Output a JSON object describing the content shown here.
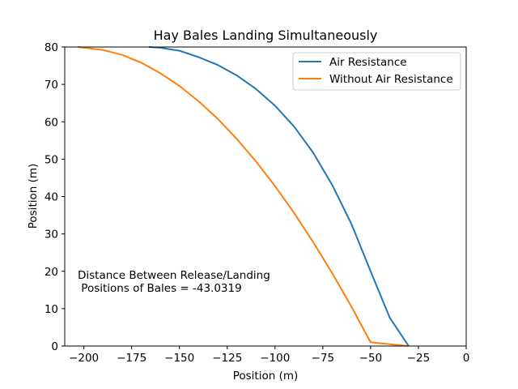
{
  "chart_data": {
    "type": "line",
    "title": "Hay Bales Landing Simultaneously",
    "xlabel": "Position (m)",
    "ylabel": "Position (m)",
    "xlim": [
      -210,
      0
    ],
    "ylim": [
      0,
      80
    ],
    "xticks": [
      -200,
      -175,
      -150,
      -125,
      -100,
      -75,
      -50,
      -25,
      0
    ],
    "xtick_labels": [
      "−200",
      "−175",
      "−150",
      "−125",
      "−100",
      "−75",
      "−50",
      "−25",
      "0"
    ],
    "yticks": [
      0,
      10,
      20,
      30,
      40,
      50,
      60,
      70,
      80
    ],
    "ytick_labels": [
      "0",
      "10",
      "20",
      "30",
      "40",
      "50",
      "60",
      "70",
      "80"
    ],
    "grid": false,
    "legend_position": "top-right",
    "annotation": {
      "line1": "Distance Between Release/Landing",
      "line2": " Positions of Bales = -43.0319"
    },
    "series": [
      {
        "name": "Air Resistance",
        "color": "#1f77b4",
        "points": [
          [
            -166,
            80
          ],
          [
            -160,
            79.8
          ],
          [
            -150,
            79
          ],
          [
            -140,
            77.3
          ],
          [
            -130,
            75.2
          ],
          [
            -120,
            72.4
          ],
          [
            -110,
            68.8
          ],
          [
            -100,
            64.3
          ],
          [
            -90,
            58.7
          ],
          [
            -80,
            51.7
          ],
          [
            -70,
            43.0
          ],
          [
            -60,
            32.6
          ],
          [
            -50,
            20.0
          ],
          [
            -40,
            7.6
          ],
          [
            -30.1,
            0
          ]
        ]
      },
      {
        "name": "Without Air Resistance",
        "color": "#ff7f0e",
        "points": [
          [
            -203,
            80
          ],
          [
            -190,
            79.2
          ],
          [
            -180,
            77.9
          ],
          [
            -170,
            75.8
          ],
          [
            -160,
            73.0
          ],
          [
            -150,
            69.6
          ],
          [
            -140,
            65.5
          ],
          [
            -130,
            60.8
          ],
          [
            -120,
            55.4
          ],
          [
            -110,
            49.4
          ],
          [
            -100,
            42.8
          ],
          [
            -90,
            35.6
          ],
          [
            -80,
            27.8
          ],
          [
            -70,
            19.4
          ],
          [
            -60,
            10.5
          ],
          [
            -50,
            1.0
          ],
          [
            -30.1,
            0
          ]
        ]
      }
    ]
  }
}
